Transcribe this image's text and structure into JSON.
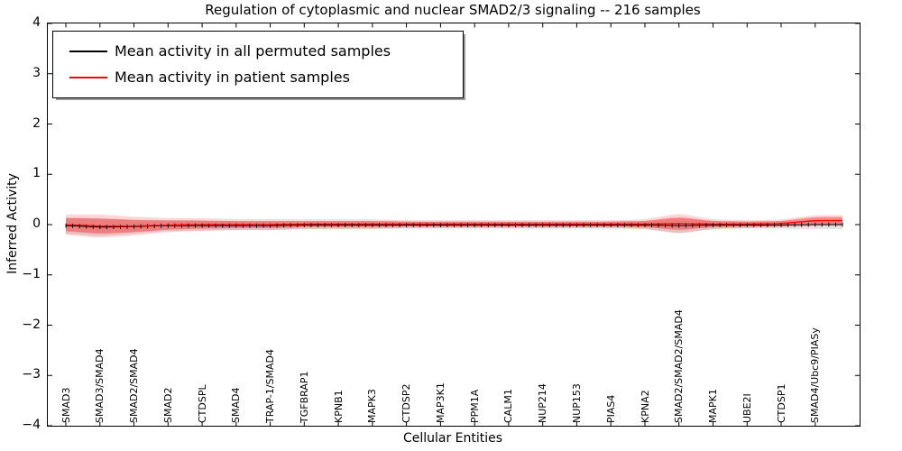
{
  "chart_data": {
    "type": "line",
    "title": "Regulation of cytoplasmic and nuclear SMAD2/3 signaling -- 216 samples",
    "xlabel": "Cellular Entities",
    "ylabel": "Inferred Activity",
    "ylim": [
      -4,
      4
    ],
    "ytick_labels": [
      "4",
      "3",
      "2",
      "1",
      "0",
      "−1",
      "−2",
      "−3",
      "−4"
    ],
    "ytick_values": [
      4,
      3,
      2,
      1,
      0,
      -1,
      -2,
      -3,
      -4
    ],
    "grid": false,
    "legend_position": "upper-left",
    "points_between_labels": 5,
    "total_points": 115,
    "categories": [
      "SMAD3",
      "SMAD3/SMAD4",
      "SMAD2/SMAD4",
      "SMAD2",
      "CTDSPL",
      "SMAD4",
      "TRAP-1/SMAD4",
      "TGFBRAP1",
      "KPNB1",
      "MAPK3",
      "CTDSP2",
      "MAP3K1",
      "PPM1A",
      "CALM1",
      "NUP214",
      "NUP153",
      "PIAS4",
      "KPNA2",
      "SMAD2/SMAD2/SMAD4",
      "MAPK1",
      "UBE2I",
      "CTDSP1",
      "SMAD4/Ubc9/PIASy"
    ],
    "series": [
      {
        "name": "Mean activity in all permuted samples",
        "color": "#000000",
        "band_color": "rgba(0,0,0,0.10)",
        "marker": "plus",
        "values": [
          -0.02,
          -0.05,
          -0.04,
          -0.02,
          -0.02,
          -0.02,
          -0.02,
          -0.01,
          -0.01,
          -0.01,
          -0.01,
          -0.01,
          -0.01,
          -0.01,
          -0.01,
          -0.01,
          -0.01,
          -0.01,
          -0.02,
          -0.01,
          -0.01,
          -0.01,
          0.0
        ],
        "band_half_width": [
          0.16,
          0.18,
          0.14,
          0.11,
          0.1,
          0.09,
          0.09,
          0.08,
          0.08,
          0.08,
          0.07,
          0.07,
          0.07,
          0.07,
          0.07,
          0.07,
          0.07,
          0.08,
          0.15,
          0.08,
          0.07,
          0.07,
          0.09
        ]
      },
      {
        "name": "Mean activity in patient samples",
        "color": "#ff0000",
        "band_color": "rgba(255,0,0,0.35)",
        "outer_band_color": "rgba(255,0,0,0.16)",
        "outer_band_factor": 1.55,
        "marker": "none",
        "values": [
          0.0,
          -0.03,
          -0.03,
          -0.01,
          0.0,
          0.0,
          0.0,
          0.01,
          0.01,
          0.01,
          0.01,
          0.01,
          0.01,
          0.01,
          0.01,
          0.01,
          0.01,
          0.01,
          0.02,
          0.01,
          0.01,
          0.02,
          0.08
        ],
        "band_half_width": [
          0.13,
          0.15,
          0.12,
          0.09,
          0.08,
          0.07,
          0.07,
          0.06,
          0.06,
          0.06,
          0.05,
          0.05,
          0.05,
          0.05,
          0.05,
          0.05,
          0.05,
          0.06,
          0.13,
          0.06,
          0.05,
          0.05,
          0.07
        ]
      }
    ],
    "axis_color": "#000000",
    "background_color": "#ffffff"
  },
  "legend": {
    "entries": [
      {
        "label": "Mean activity in all permuted samples",
        "color": "#000000"
      },
      {
        "label": "Mean activity in patient samples",
        "color": "#ff0000"
      }
    ]
  }
}
